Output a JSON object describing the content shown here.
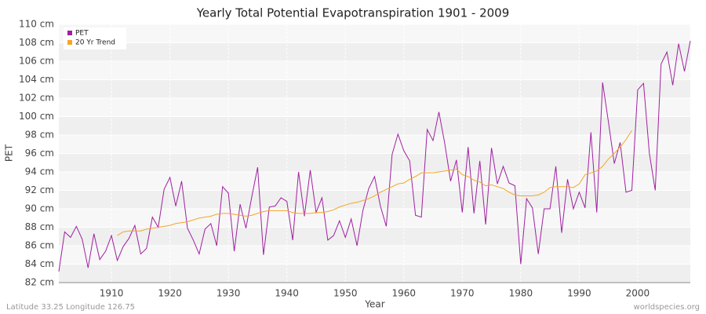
{
  "chart_data": {
    "type": "line",
    "title": "Yearly Total Potential Evapotranspiration 1901 - 2009",
    "x_label": "Year",
    "y_label": "PET",
    "footer_left": "Latitude 33.25 Longitude 126.75",
    "footer_right": "worldspecies.org",
    "legend_position": "top-left",
    "grid": true,
    "x": [
      1901,
      1902,
      1903,
      1904,
      1905,
      1906,
      1907,
      1908,
      1909,
      1910,
      1911,
      1912,
      1913,
      1914,
      1915,
      1916,
      1917,
      1918,
      1919,
      1920,
      1921,
      1922,
      1923,
      1924,
      1925,
      1926,
      1927,
      1928,
      1929,
      1930,
      1931,
      1932,
      1933,
      1934,
      1935,
      1936,
      1937,
      1938,
      1939,
      1940,
      1941,
      1942,
      1943,
      1944,
      1945,
      1946,
      1947,
      1948,
      1949,
      1950,
      1951,
      1952,
      1953,
      1954,
      1955,
      1956,
      1957,
      1958,
      1959,
      1960,
      1961,
      1962,
      1963,
      1964,
      1965,
      1966,
      1967,
      1968,
      1969,
      1970,
      1971,
      1972,
      1973,
      1974,
      1975,
      1976,
      1977,
      1978,
      1979,
      1980,
      1981,
      1982,
      1983,
      1984,
      1985,
      1986,
      1987,
      1988,
      1989,
      1990,
      1991,
      1992,
      1993,
      1994,
      1995,
      1996,
      1997,
      1998,
      1999,
      2000,
      2001,
      2002,
      2003,
      2004,
      2005,
      2006,
      2007,
      2008,
      2009
    ],
    "series": [
      {
        "name": "PET",
        "color": "#a020a0",
        "values": [
          83.2,
          87.5,
          86.9,
          88.1,
          86.7,
          83.6,
          87.3,
          84.5,
          85.4,
          87.1,
          84.4,
          85.9,
          86.8,
          88.2,
          85.1,
          85.7,
          89.1,
          88.0,
          92.1,
          93.4,
          90.3,
          93.0,
          87.9,
          86.6,
          85.1,
          87.8,
          88.4,
          86.0,
          92.4,
          91.7,
          85.4,
          90.5,
          87.9,
          91.3,
          94.5,
          85.0,
          90.2,
          90.3,
          91.2,
          90.8,
          86.6,
          94.0,
          89.2,
          94.2,
          89.6,
          91.2,
          86.6,
          87.1,
          88.7,
          86.9,
          88.9,
          86.0,
          89.8,
          92.2,
          93.5,
          90.3,
          88.1,
          95.9,
          98.1,
          96.3,
          95.2,
          89.3,
          89.1,
          98.6,
          97.4,
          100.5,
          97.1,
          93.0,
          95.3,
          89.6,
          96.7,
          89.5,
          95.2,
          88.3,
          96.6,
          92.7,
          94.6,
          92.8,
          92.5,
          84.0,
          91.1,
          90.1,
          85.1,
          90.0,
          90.0,
          94.6,
          87.4,
          93.2,
          90.0,
          91.8,
          90.1,
          98.3,
          89.6,
          103.7,
          99.4,
          94.9,
          97.2,
          91.8,
          92.0,
          102.9,
          103.6,
          96.0,
          92.0,
          105.7,
          107.0,
          103.4,
          107.9,
          104.9,
          108.2
        ]
      },
      {
        "name": "20 Yr Trend",
        "color": "#f5a623",
        "values": [
          null,
          null,
          null,
          null,
          null,
          null,
          null,
          null,
          null,
          null,
          87.1,
          87.5,
          87.6,
          87.6,
          87.6,
          87.8,
          87.9,
          88.0,
          88.1,
          88.2,
          88.4,
          88.5,
          88.6,
          88.8,
          89.0,
          89.1,
          89.2,
          89.4,
          89.5,
          89.5,
          89.4,
          89.3,
          89.2,
          89.3,
          89.5,
          89.7,
          89.8,
          89.8,
          89.8,
          89.8,
          89.6,
          89.5,
          89.5,
          89.5,
          89.6,
          89.6,
          89.7,
          89.9,
          90.2,
          90.4,
          90.6,
          90.7,
          90.9,
          91.1,
          91.4,
          91.8,
          92.1,
          92.4,
          92.7,
          92.8,
          93.2,
          93.5,
          93.9,
          93.9,
          93.9,
          94.0,
          94.1,
          94.2,
          94.3,
          93.7,
          93.5,
          93.1,
          92.9,
          92.5,
          92.6,
          92.4,
          92.2,
          91.8,
          91.5,
          91.4,
          91.4,
          91.4,
          91.5,
          91.8,
          92.3,
          92.4,
          92.4,
          92.4,
          92.3,
          92.7,
          93.7,
          93.9,
          94.1,
          94.6,
          95.4,
          96.0,
          96.7,
          97.5,
          98.5,
          null,
          null,
          null,
          null,
          null,
          null,
          null,
          null,
          null,
          null
        ]
      }
    ],
    "xlim": [
      1901,
      2009
    ],
    "xticks": [
      1910,
      1920,
      1930,
      1940,
      1950,
      1960,
      1970,
      1980,
      1990,
      2000
    ],
    "ylim": [
      82,
      110
    ],
    "yticks": [
      {
        "value": 82,
        "label": "82 cm"
      },
      {
        "value": 84,
        "label": "84 cm"
      },
      {
        "value": 86,
        "label": "86 cm"
      },
      {
        "value": 88,
        "label": "88 cm"
      },
      {
        "value": 90,
        "label": "90 cm"
      },
      {
        "value": 92,
        "label": "92 cm"
      },
      {
        "value": 94,
        "label": "94 cm"
      },
      {
        "value": 96,
        "label": "96 cm"
      },
      {
        "value": 98,
        "label": "98 cm"
      },
      {
        "value": 100,
        "label": "100 cm"
      },
      {
        "value": 102,
        "label": "102 cm"
      },
      {
        "value": 104,
        "label": "104 cm"
      },
      {
        "value": 106,
        "label": "106 cm"
      },
      {
        "value": 108,
        "label": "108 cm"
      },
      {
        "value": 110,
        "label": "110 cm"
      }
    ]
  }
}
